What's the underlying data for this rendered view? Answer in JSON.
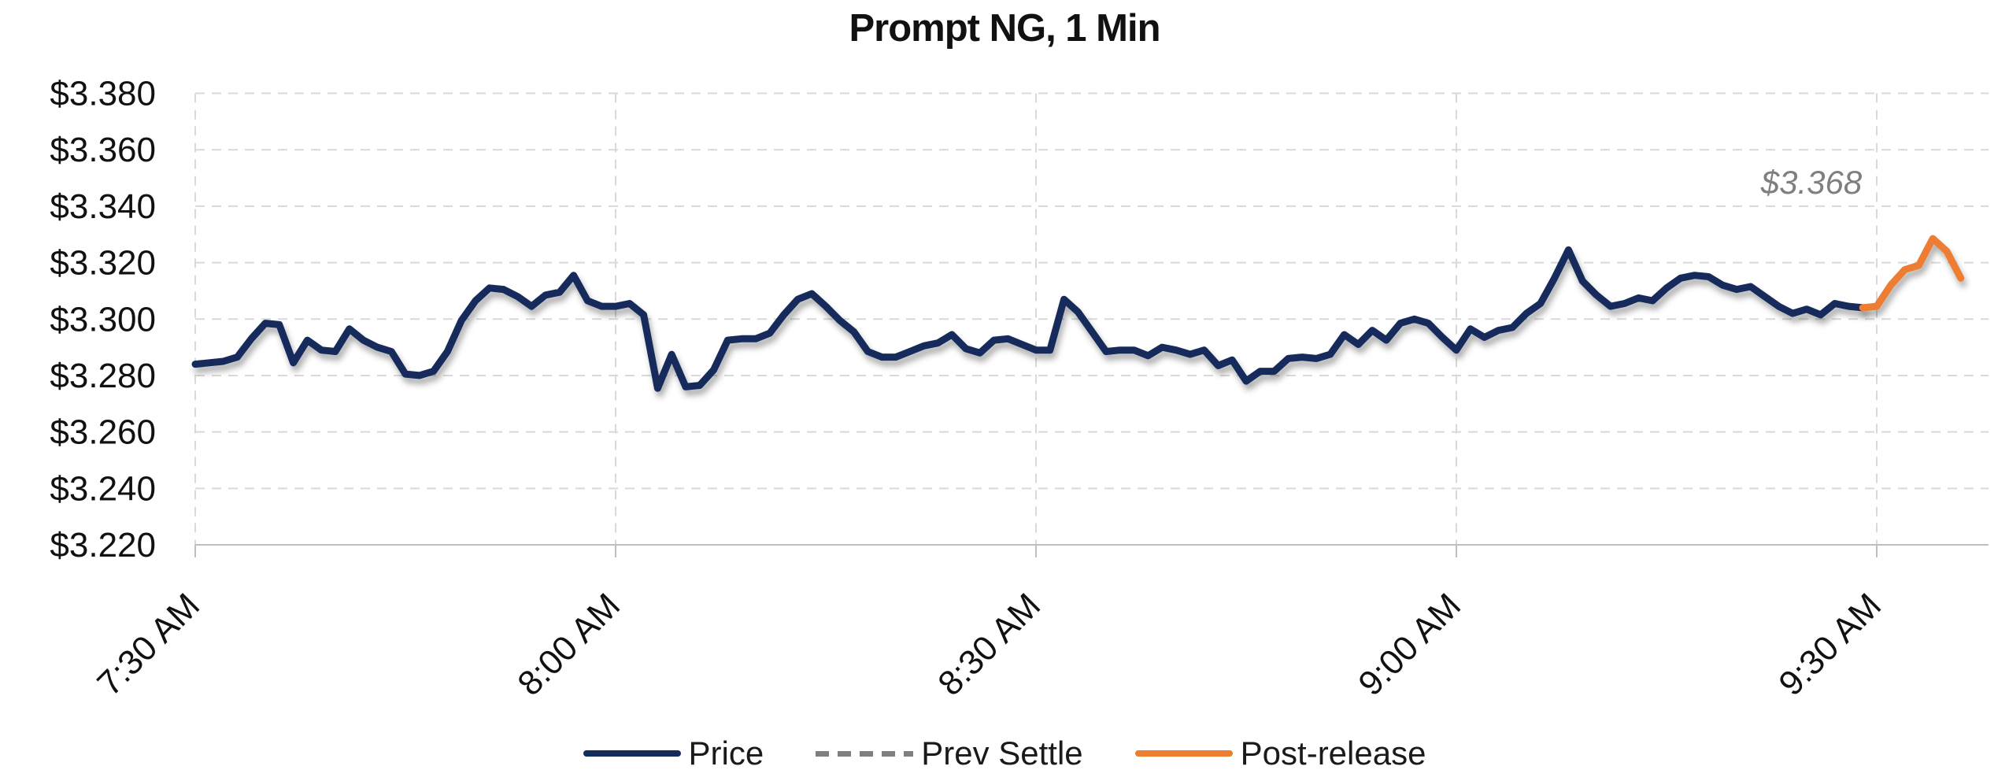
{
  "title": "Prompt NG, 1 Min",
  "annotation": {
    "text": "$3.368"
  },
  "legend": {
    "items": [
      {
        "label": "Price",
        "style": "solid",
        "color": "#132c5b"
      },
      {
        "label": "Prev Settle",
        "style": "dashed",
        "color": "#7f7f7f"
      },
      {
        "label": "Post-release",
        "style": "solid",
        "color": "#ed7d31"
      }
    ],
    "position": "bottom-center"
  },
  "colors": {
    "price_line": "#132c5b",
    "prev_settle_line": "#7f7f7f",
    "post_release_line": "#ed7d31",
    "gridline": "#d9d9d9",
    "axis_line": "#bfbfbf",
    "tick_label": "#111111",
    "annotation_text": "#7f7f7f"
  },
  "chart_data": {
    "type": "line",
    "title": "Prompt NG, 1 Min",
    "xlabel": "",
    "ylabel": "",
    "ylim": [
      3.22,
      3.38
    ],
    "y_step": 0.02,
    "y_ticks": [
      3.38,
      3.36,
      3.34,
      3.32,
      3.3,
      3.28,
      3.26,
      3.24,
      3.22
    ],
    "y_tick_labels": [
      "$3.380",
      "$3.360",
      "$3.340",
      "$3.320",
      "$3.300",
      "$3.280",
      "$3.260",
      "$3.240",
      "$3.220"
    ],
    "x_tick_labels": [
      "7:30 AM",
      "8:00 AM",
      "8:30 AM",
      "9:00 AM",
      "9:30 AM"
    ],
    "x_tick_minutes": [
      0,
      30,
      60,
      90,
      120
    ],
    "minutes_per_point": 1,
    "grid": "dashed",
    "legend_position": "bottom",
    "prev_settle_value": 3.368,
    "annotation": "$3.368",
    "series": [
      {
        "name": "Price",
        "color": "#132c5b",
        "line_style": "solid",
        "start_minute_index": 0,
        "values": [
          3.284,
          3.2845,
          3.285,
          3.2865,
          3.293,
          3.2985,
          3.298,
          3.2845,
          3.2925,
          3.289,
          3.2885,
          3.2965,
          3.2925,
          3.29,
          3.2885,
          3.2805,
          3.28,
          3.2815,
          3.2885,
          3.2995,
          3.3065,
          3.311,
          3.3105,
          3.308,
          3.3045,
          3.3085,
          3.3095,
          3.3155,
          3.3065,
          3.3045,
          3.3045,
          3.3055,
          3.3015,
          3.2755,
          3.2875,
          3.276,
          3.2765,
          3.282,
          3.2925,
          3.293,
          3.293,
          3.295,
          3.3015,
          3.307,
          3.309,
          3.3045,
          3.2995,
          3.2955,
          3.2885,
          3.2865,
          3.2865,
          3.2885,
          3.2905,
          3.2915,
          3.2945,
          3.2895,
          3.288,
          3.2925,
          3.293,
          3.291,
          3.289,
          3.289,
          3.307,
          3.3025,
          3.2955,
          3.2885,
          3.289,
          3.289,
          3.287,
          3.29,
          3.289,
          3.2875,
          3.289,
          3.2835,
          3.2855,
          3.278,
          3.2815,
          3.2815,
          3.286,
          3.2865,
          3.286,
          3.2875,
          3.2945,
          3.291,
          3.296,
          3.2925,
          3.2985,
          3.3,
          3.2985,
          3.2935,
          3.289,
          3.2965,
          3.2935,
          3.296,
          3.297,
          3.302,
          3.3055,
          3.3145,
          3.3245,
          3.3135,
          3.3085,
          3.3045,
          3.3055,
          3.3075,
          3.3065,
          3.311,
          3.3145,
          3.3155,
          3.315,
          3.312,
          3.3105,
          3.3115,
          3.308,
          3.3045,
          3.302,
          3.3035,
          3.3015,
          3.3055,
          3.3045,
          3.304
        ]
      },
      {
        "name": "Prev Settle",
        "color": "#7f7f7f",
        "line_style": "dashed",
        "constant_value": 3.368
      },
      {
        "name": "Post-release",
        "color": "#ed7d31",
        "line_style": "solid",
        "start_minute_index": 119,
        "values": [
          3.304,
          3.3045,
          3.312,
          3.3175,
          3.319,
          3.3285,
          3.324,
          3.3145
        ]
      }
    ]
  }
}
